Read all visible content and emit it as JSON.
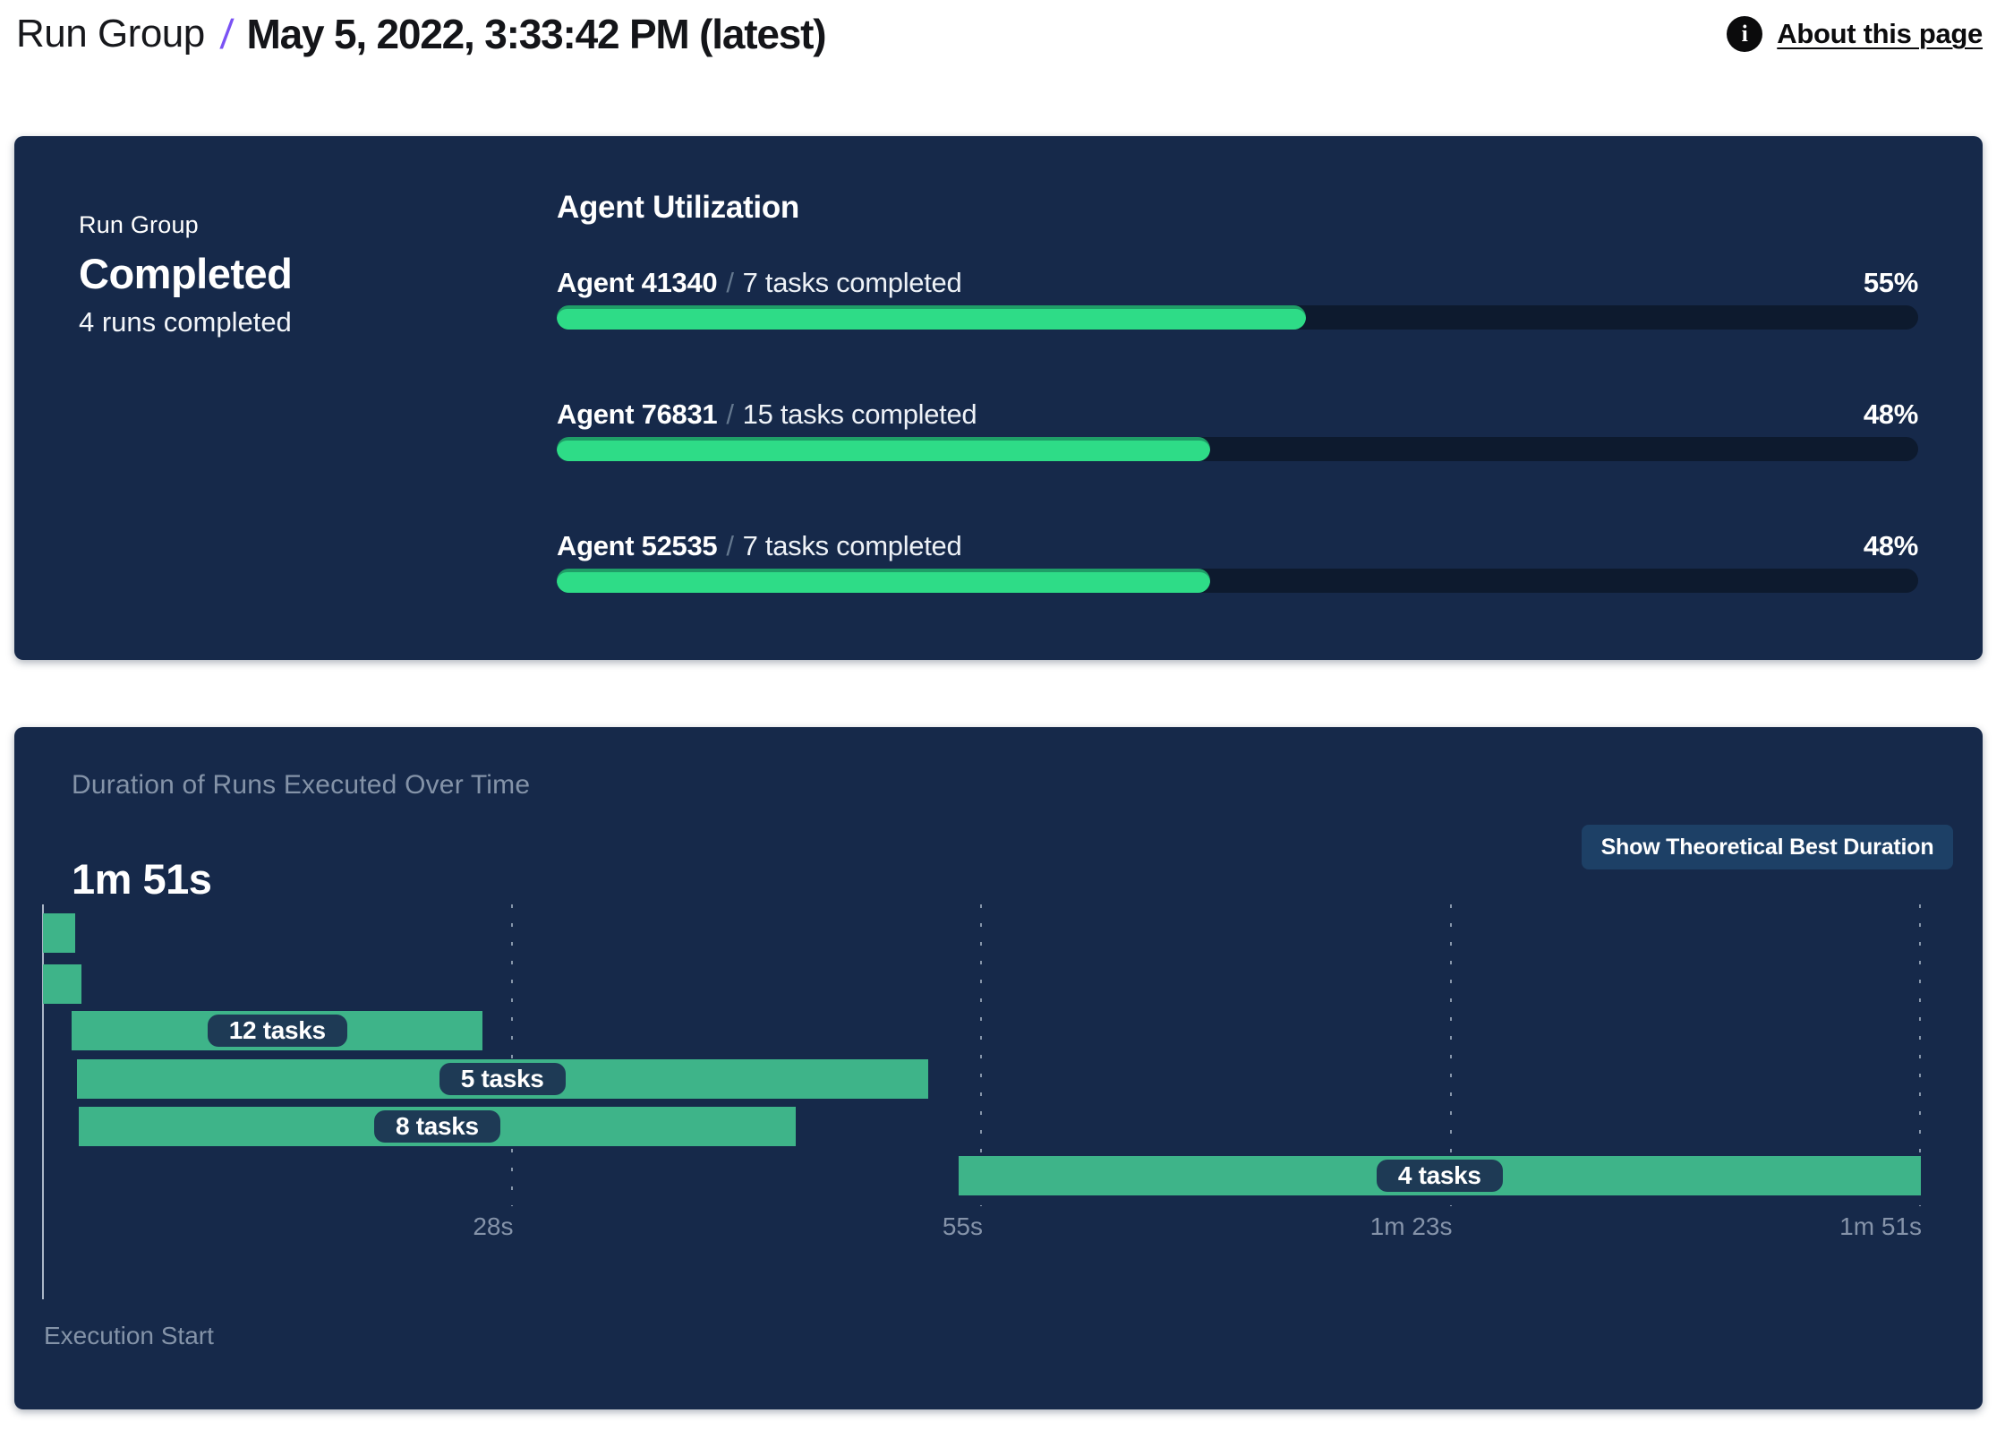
{
  "header": {
    "breadcrumb_root": "Run Group",
    "breadcrumb_separator": "/",
    "title": "May 5, 2022, 3:33:42 PM (latest)",
    "about_link": "About this page",
    "accent_purple": "#7a52f4"
  },
  "summary_card": {
    "label": "Run Group",
    "status": "Completed",
    "runs_completed": "4 runs completed",
    "utilization": {
      "title": "Agent Utilization",
      "agents": [
        {
          "name": "Agent 41340",
          "separator": "/",
          "tasks": "7 tasks completed",
          "percent": "55%",
          "value": 55
        },
        {
          "name": "Agent 76831",
          "separator": "/",
          "tasks": "15 tasks completed",
          "percent": "48%",
          "value": 48
        },
        {
          "name": "Agent 52535",
          "separator": "/",
          "tasks": "7 tasks completed",
          "percent": "48%",
          "value": 48
        }
      ],
      "fill_color": "#2edc87",
      "fill_edge_color": "#1f9e67",
      "track_color": "#0d1a2e"
    }
  },
  "duration_card": {
    "title": "Duration of Runs Executed Over Time",
    "total_duration": "1m 51s",
    "button_label": "Show Theoretical Best Duration",
    "axis_label": "Execution Start"
  },
  "chart_data": {
    "type": "gantt",
    "title": "Duration of Runs Executed Over Time",
    "total_duration_label": "1m 51s",
    "xlim_seconds": [
      0,
      111
    ],
    "x_ticks": [
      "28s",
      "55s",
      "1m 23s",
      "1m 51s"
    ],
    "x_tick_seconds": [
      27.75,
      55.5,
      83.25,
      111
    ],
    "bars": [
      {
        "start_s": 0,
        "end_s": 1.9,
        "label": ""
      },
      {
        "start_s": 0,
        "end_s": 2.3,
        "label": ""
      },
      {
        "start_s": 1.7,
        "end_s": 26,
        "label": "12 tasks"
      },
      {
        "start_s": 2,
        "end_s": 52.3,
        "label": "5 tasks"
      },
      {
        "start_s": 2.1,
        "end_s": 44.5,
        "label": "8 tasks"
      },
      {
        "start_s": 54.1,
        "end_s": 111,
        "label": "4 tasks"
      }
    ],
    "bar_color": "#3eb489",
    "label_pill_color": "#1e3a55",
    "grid": "vertical-dashed",
    "x_axis_origin_label": "Execution Start"
  }
}
